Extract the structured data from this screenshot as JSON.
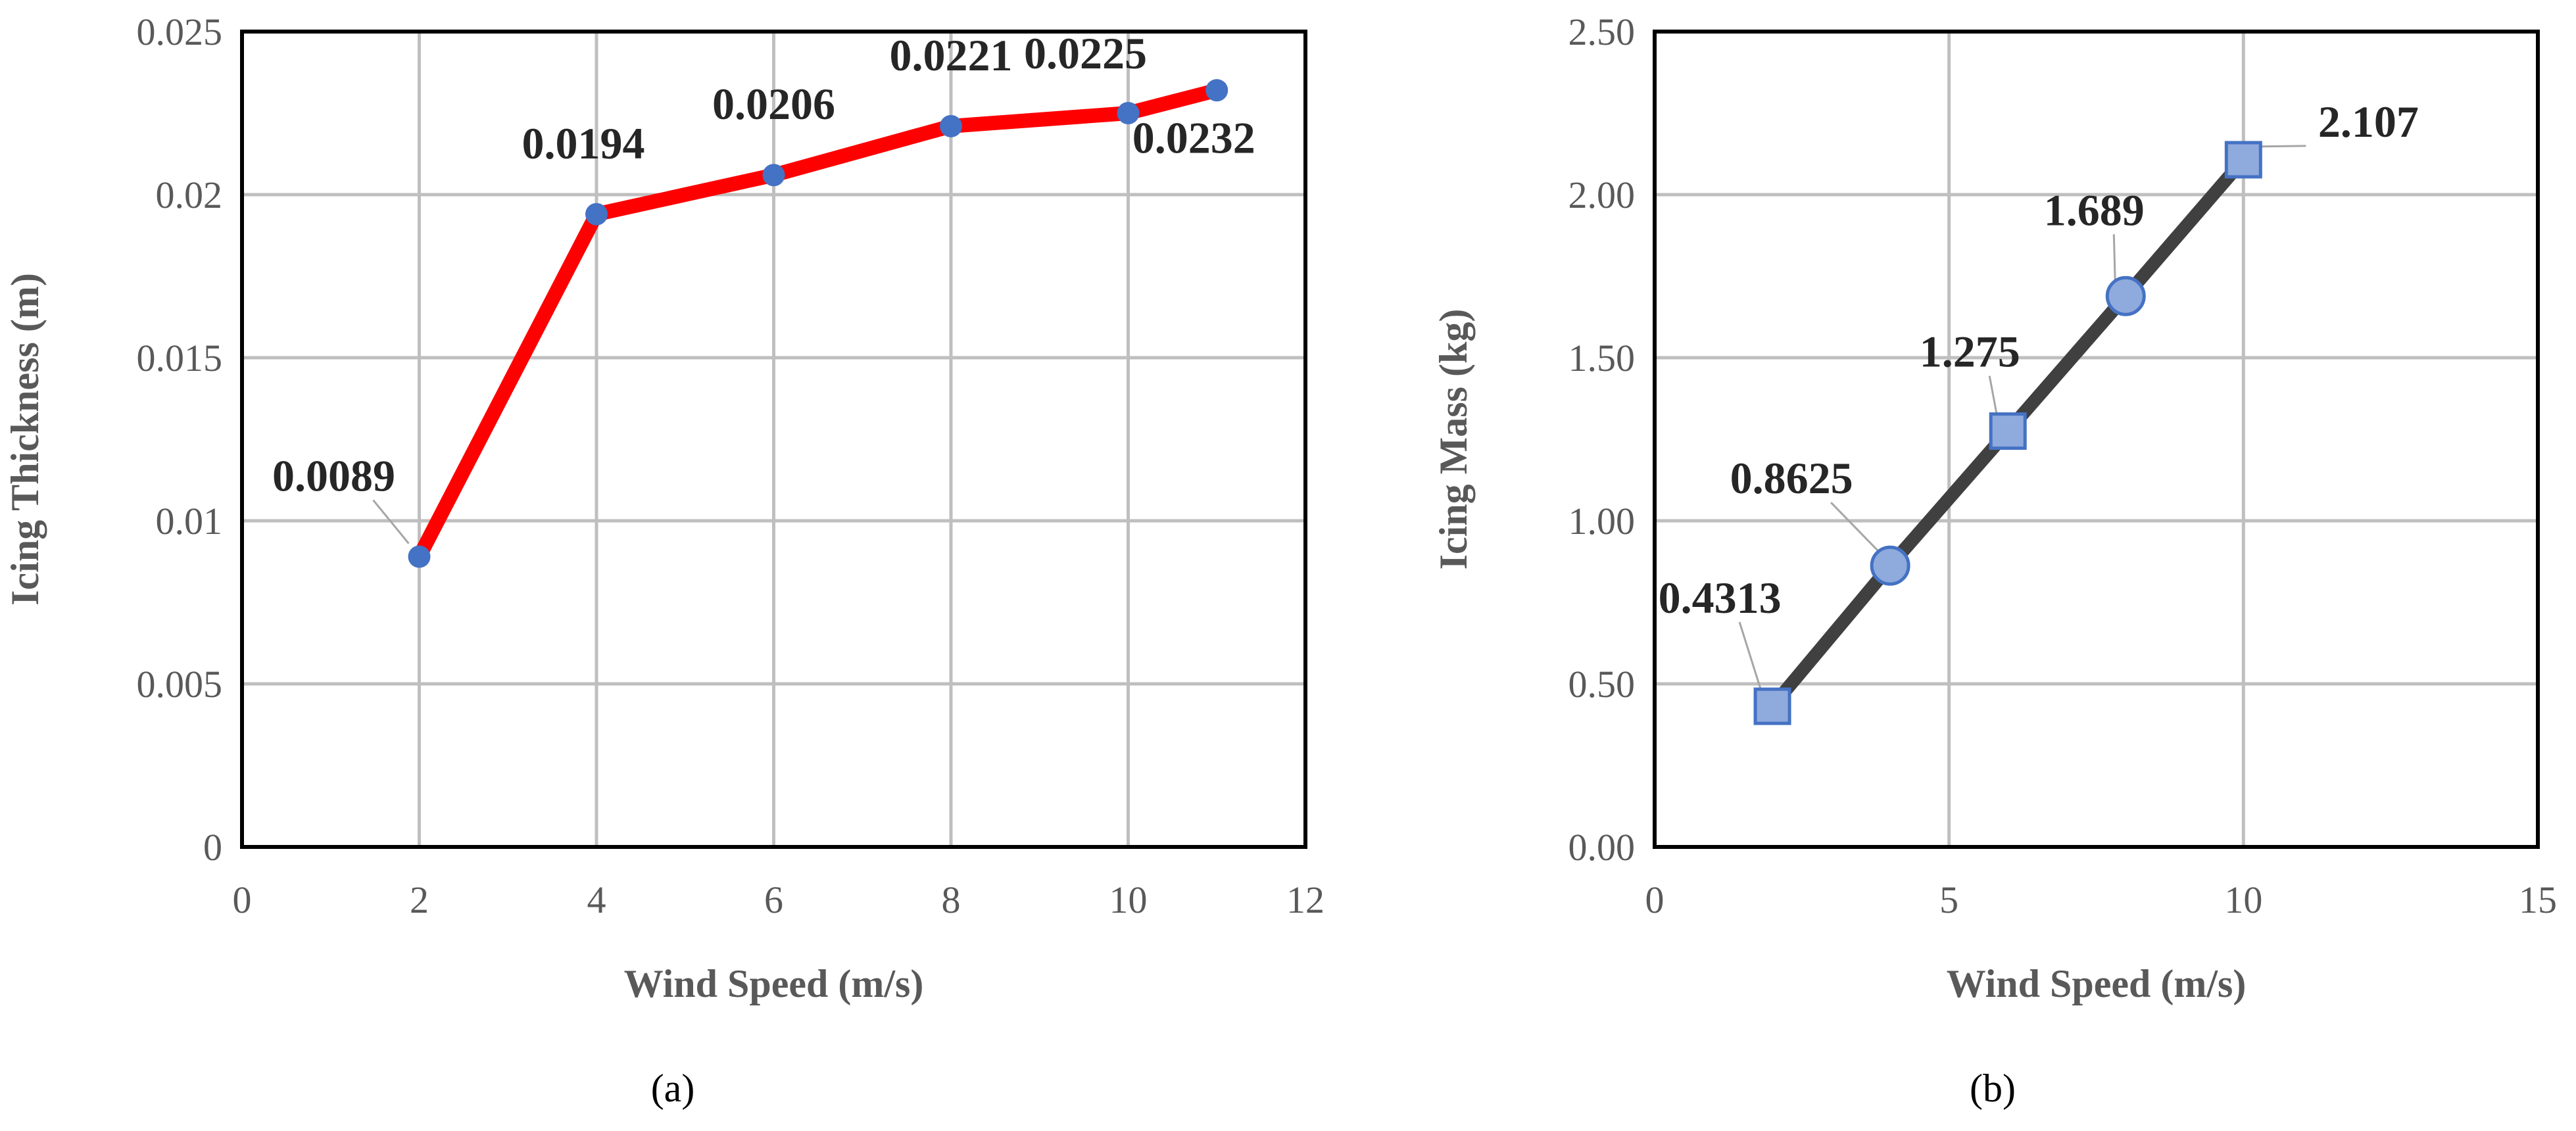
{
  "chart_data": [
    {
      "type": "line",
      "caption": "(a)",
      "xlabel": "Wind Speed (m/s)",
      "ylabel": "Icing Thickness (m)",
      "xlim": [
        0,
        12
      ],
      "ylim": [
        0,
        0.025
      ],
      "x_ticks": [
        0,
        2,
        4,
        6,
        8,
        10,
        12
      ],
      "x_tick_labels": [
        "0",
        "2",
        "4",
        "6",
        "8",
        "10",
        "12"
      ],
      "y_ticks": [
        0,
        0.005,
        0.01,
        0.015,
        0.02,
        0.025
      ],
      "y_tick_labels": [
        "0",
        "0.005",
        "0.01",
        "0.015",
        "0.02",
        "0.025"
      ],
      "grid": true,
      "series": [
        {
          "x": [
            2,
            4,
            6,
            8,
            10,
            11
          ],
          "y": [
            0.0089,
            0.0194,
            0.0206,
            0.0221,
            0.0225,
            0.0232
          ],
          "data_labels": [
            "0.0089",
            "0.0194",
            "0.0206",
            "0.0221",
            "0.0225",
            "0.0232"
          ],
          "line_color": "#ff0000",
          "marker": "circle",
          "marker_color": "#4472c4"
        }
      ]
    },
    {
      "type": "line",
      "caption": "(b)",
      "xlabel": "Wind Speed (m/s)",
      "ylabel": "Icing Mass (kg)",
      "xlim": [
        0,
        15
      ],
      "ylim": [
        0,
        2.5
      ],
      "x_ticks": [
        0,
        5,
        10,
        15
      ],
      "x_tick_labels": [
        "0",
        "5",
        "10",
        "15"
      ],
      "y_ticks": [
        0,
        0.5,
        1,
        1.5,
        2,
        2.5
      ],
      "y_tick_labels": [
        "0.00",
        "0.50",
        "1.00",
        "1.50",
        "2.00",
        "2.50"
      ],
      "grid": true,
      "series": [
        {
          "x": [
            2,
            4,
            6,
            8,
            10
          ],
          "y": [
            0.4313,
            0.8625,
            1.275,
            1.689,
            2.107
          ],
          "data_labels": [
            "0.4313",
            "0.8625",
            "1.275",
            "1.689",
            "2.107"
          ],
          "markers": [
            "square",
            "circle",
            "square",
            "circle",
            "square"
          ],
          "line_color": "#404040",
          "marker_color": "#8faadc",
          "marker_edge_color": "#4472c4"
        }
      ]
    }
  ]
}
